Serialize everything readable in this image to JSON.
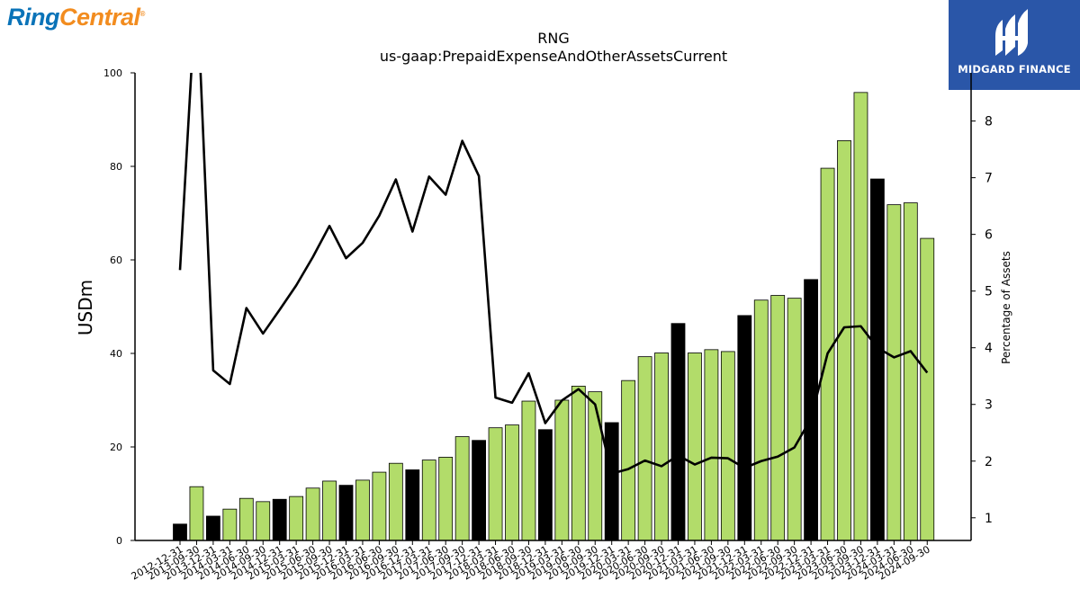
{
  "logo_left": {
    "part1": "Ring",
    "part2": "Central",
    "reg": "®"
  },
  "logo_right": {
    "label": "MIDGARD FINANCE"
  },
  "chart_data": {
    "type": "bar",
    "title": "RNG",
    "subtitle": "us-gaap:PrepaidExpenseAndOtherAssetsCurrent",
    "ylabel": "USDm",
    "y2label": "Percentage of Assets",
    "ylim": [
      0,
      100
    ],
    "yticks": [
      0,
      20,
      40,
      60,
      80,
      100
    ],
    "y2lim": [
      0.6,
      8.85
    ],
    "y2ticks": [
      1,
      2,
      3,
      4,
      5,
      6,
      7,
      8
    ],
    "categories": [
      "2012-12-31",
      "2013-09-30",
      "2013-12-31",
      "2014-03-31",
      "2014-06-30",
      "2014-09-30",
      "2014-12-31",
      "2015-03-31",
      "2015-06-30",
      "2015-09-30",
      "2015-12-31",
      "2016-03-31",
      "2016-06-30",
      "2016-09-30",
      "2016-12-31",
      "2017-03-31",
      "2017-06-30",
      "2017-09-30",
      "2017-12-31",
      "2018-03-31",
      "2018-06-30",
      "2018-09-30",
      "2018-12-31",
      "2019-03-31",
      "2019-06-30",
      "2019-09-30",
      "2019-12-31",
      "2020-03-31",
      "2020-06-30",
      "2020-09-30",
      "2020-12-31",
      "2021-03-31",
      "2021-06-30",
      "2021-09-30",
      "2021-12-31",
      "2022-03-31",
      "2022-06-30",
      "2022-09-30",
      "2022-12-31",
      "2023-03-31",
      "2023-06-30",
      "2023-09-30",
      "2023-12-31",
      "2024-03-31",
      "2024-06-30",
      "2024-09-30"
    ],
    "series": [
      {
        "type": "bar",
        "values": [
          3.5,
          11.5,
          5.2,
          6.7,
          9.0,
          8.3,
          8.8,
          9.4,
          11.2,
          12.7,
          11.8,
          12.9,
          14.6,
          16.5,
          15.1,
          17.2,
          17.8,
          22.2,
          21.4,
          24.1,
          24.7,
          29.8,
          23.7,
          30.0,
          33.0,
          31.8,
          25.2,
          34.2,
          39.3,
          40.1,
          46.4,
          40.1,
          40.8,
          40.4,
          48.1,
          51.4,
          52.4,
          51.8,
          55.8,
          79.6,
          85.5,
          95.8,
          77.3,
          71.8,
          72.2,
          64.6
        ],
        "year_end_flags": [
          1,
          0,
          1,
          0,
          0,
          0,
          1,
          0,
          0,
          0,
          1,
          0,
          0,
          0,
          1,
          0,
          0,
          0,
          1,
          0,
          0,
          0,
          1,
          0,
          0,
          0,
          1,
          0,
          0,
          0,
          1,
          0,
          0,
          0,
          1,
          0,
          0,
          0,
          1,
          0,
          0,
          0,
          1,
          0,
          0,
          0
        ],
        "color": "#b2dc6a",
        "year_end_color": "#000000"
      },
      {
        "type": "line",
        "axis": "right",
        "color": "#000000",
        "values": [
          5.37,
          10.5,
          3.6,
          3.36,
          4.7,
          4.25,
          4.67,
          5.1,
          5.6,
          6.15,
          5.58,
          5.85,
          6.33,
          6.97,
          6.05,
          7.02,
          6.7,
          7.65,
          7.03,
          3.12,
          3.03,
          3.55,
          2.67,
          3.07,
          3.27,
          3.0,
          1.78,
          1.86,
          2.01,
          1.91,
          2.1,
          1.94,
          2.06,
          2.05,
          1.88,
          2.0,
          2.08,
          2.24,
          2.75,
          3.9,
          4.36,
          4.38,
          4.0,
          3.83,
          3.94,
          3.56
        ]
      }
    ],
    "colors": {
      "bar": "#b2dc6a",
      "bar_year_end": "#000000",
      "line": "#000000"
    }
  }
}
